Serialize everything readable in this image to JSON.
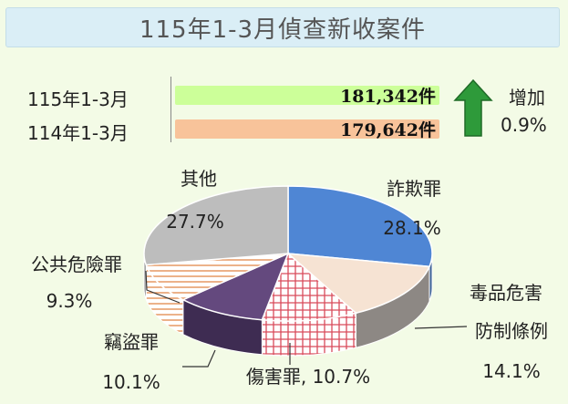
{
  "title": "115年1-3月偵查新收案件",
  "comparison": {
    "rows": [
      {
        "label": "115年1-3月",
        "value_text": "181,342件",
        "value": 181342,
        "color": "#ccff99"
      },
      {
        "label": "114年1-3月",
        "value_text": "179,642件",
        "value": 179642,
        "color": "#f8c39a"
      }
    ],
    "change_label": "增加",
    "change_value": "0.9%",
    "arrow_icon": "up-arrow-icon",
    "arrow_color": "#2e9a3a"
  },
  "chart_data": {
    "type": "pie",
    "title": "",
    "slices": [
      {
        "name": "詐欺罪",
        "value": 28.1,
        "label": "28.1%",
        "color": "#4f86d4"
      },
      {
        "name": "毒品危害防制條例",
        "value": 14.1,
        "label": "14.1%",
        "color": "#f6e3d3"
      },
      {
        "name": "傷害罪",
        "value": 10.7,
        "label": "10.7%",
        "color": "#d94b5a"
      },
      {
        "name": "竊盜罪",
        "value": 10.1,
        "label": "10.1%",
        "color": "#64497e"
      },
      {
        "name": "公共危險罪",
        "value": 9.3,
        "label": "9.3%",
        "color": "#e2884a"
      },
      {
        "name": "其他",
        "value": 27.7,
        "label": "27.7%",
        "color": "#bdbdbd"
      }
    ]
  }
}
